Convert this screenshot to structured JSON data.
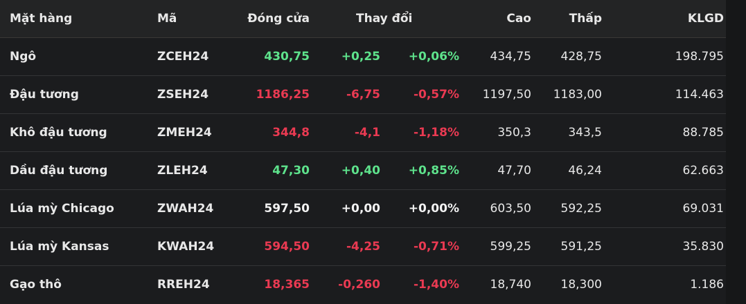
{
  "headers": {
    "name": "Mặt hàng",
    "code": "Mã",
    "close": "Đóng cửa",
    "change": "Thay đổi",
    "high": "Cao",
    "low": "Thấp",
    "volume": "KLGD"
  },
  "colors": {
    "up": "#5ee38c",
    "down": "#ea3a52",
    "flat": "#f2f2f2"
  },
  "rows": [
    {
      "name": "Ngô",
      "code": "ZCEH24",
      "close": "430,75",
      "change": "+0,25",
      "pct": "+0,06%",
      "high": "434,75",
      "low": "428,75",
      "volume": "198.795",
      "dir": "up"
    },
    {
      "name": "Đậu tương",
      "code": "ZSEH24",
      "close": "1186,25",
      "change": "-6,75",
      "pct": "-0,57%",
      "high": "1197,50",
      "low": "1183,00",
      "volume": "114.463",
      "dir": "down"
    },
    {
      "name": "Khô đậu tương",
      "code": "ZMEH24",
      "close": "344,8",
      "change": "-4,1",
      "pct": "-1,18%",
      "high": "350,3",
      "low": "343,5",
      "volume": "88.785",
      "dir": "down"
    },
    {
      "name": "Dầu đậu tương",
      "code": "ZLEH24",
      "close": "47,30",
      "change": "+0,40",
      "pct": "+0,85%",
      "high": "47,70",
      "low": "46,24",
      "volume": "62.663",
      "dir": "up"
    },
    {
      "name": "Lúa mỳ Chicago",
      "code": "ZWAH24",
      "close": "597,50",
      "change": "+0,00",
      "pct": "+0,00%",
      "high": "603,50",
      "low": "592,25",
      "volume": "69.031",
      "dir": "flat"
    },
    {
      "name": "Lúa mỳ Kansas",
      "code": "KWAH24",
      "close": "594,50",
      "change": "-4,25",
      "pct": "-0,71%",
      "high": "599,25",
      "low": "591,25",
      "volume": "35.830",
      "dir": "down"
    },
    {
      "name": "Gạo thô",
      "code": "RREH24",
      "close": "18,365",
      "change": "-0,260",
      "pct": "-1,40%",
      "high": "18,740",
      "low": "18,300",
      "volume": "1.186",
      "dir": "down"
    }
  ]
}
